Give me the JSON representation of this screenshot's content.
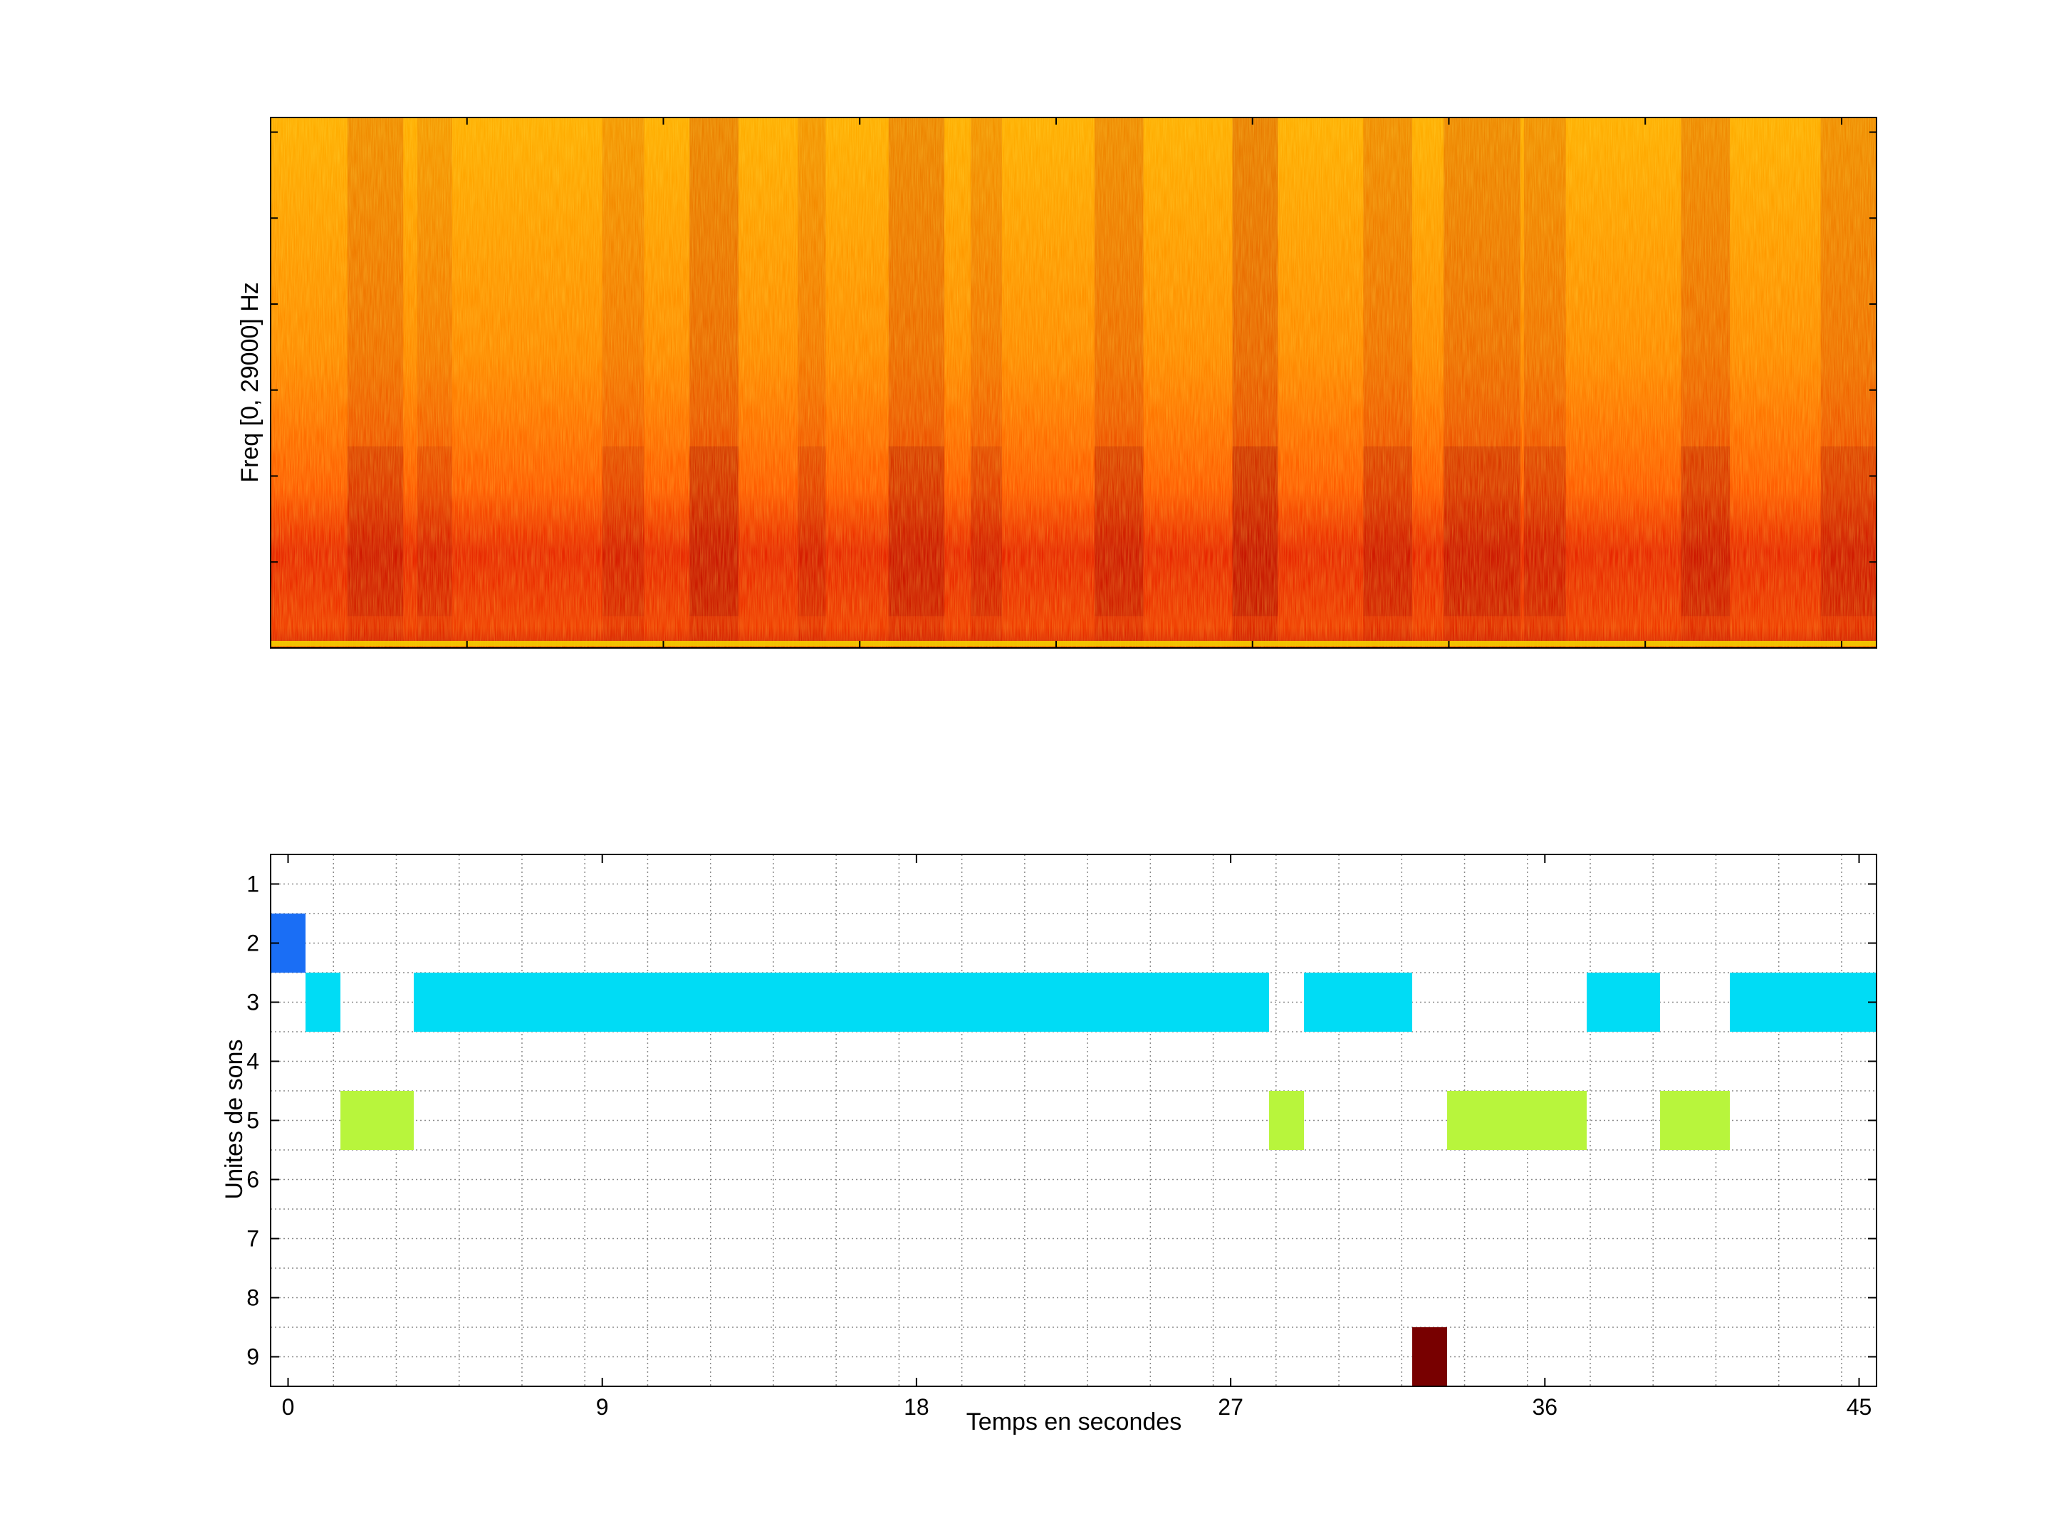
{
  "chart_data": [
    {
      "type": "heatmap",
      "title": "",
      "xlabel": "",
      "ylabel": "Freq [0, 29000] Hz",
      "xlim": [
        -0.5,
        45.5
      ],
      "ylim": [
        0,
        29000
      ],
      "x_tick_count_marks": 9,
      "y_tick_count_marks": 6,
      "colormap": "hot",
      "x_ticks_labeled": false,
      "y_ticks_labeled": false,
      "notes_colors": {
        "low": "#8b0000",
        "mid": "#ff2a00",
        "high": "#ffc400"
      }
    },
    {
      "type": "heatmap",
      "title": "",
      "xlabel": "Temps en secondes",
      "ylabel": "Unites de sons",
      "x_ticks": [
        0,
        9,
        18,
        27,
        36,
        45
      ],
      "y_ticks": [
        1,
        2,
        3,
        4,
        5,
        6,
        7,
        8,
        9
      ],
      "xlim": [
        -0.5,
        45.5
      ],
      "ylim": [
        0.5,
        9.5
      ],
      "grid": true,
      "x_grid_step": 1.8,
      "segments": [
        {
          "unit": 2,
          "start": -0.5,
          "end": 0.5,
          "color": "#1a6ef5"
        },
        {
          "unit": 3,
          "start": 0.5,
          "end": 1.5,
          "color": "#00dcf5"
        },
        {
          "unit": 3,
          "start": 3.6,
          "end": 28.1,
          "color": "#00dcf5"
        },
        {
          "unit": 3,
          "start": 29.1,
          "end": 32.2,
          "color": "#00dcf5"
        },
        {
          "unit": 3,
          "start": 37.2,
          "end": 39.3,
          "color": "#00dcf5"
        },
        {
          "unit": 3,
          "start": 41.3,
          "end": 45.5,
          "color": "#00dcf5"
        },
        {
          "unit": 5,
          "start": 1.5,
          "end": 3.6,
          "color": "#b8f53c"
        },
        {
          "unit": 5,
          "start": 28.1,
          "end": 29.1,
          "color": "#b8f53c"
        },
        {
          "unit": 5,
          "start": 33.2,
          "end": 37.2,
          "color": "#b8f53c"
        },
        {
          "unit": 5,
          "start": 39.3,
          "end": 41.3,
          "color": "#b8f53c"
        },
        {
          "unit": 9,
          "start": 32.2,
          "end": 33.2,
          "color": "#780000"
        }
      ]
    }
  ]
}
